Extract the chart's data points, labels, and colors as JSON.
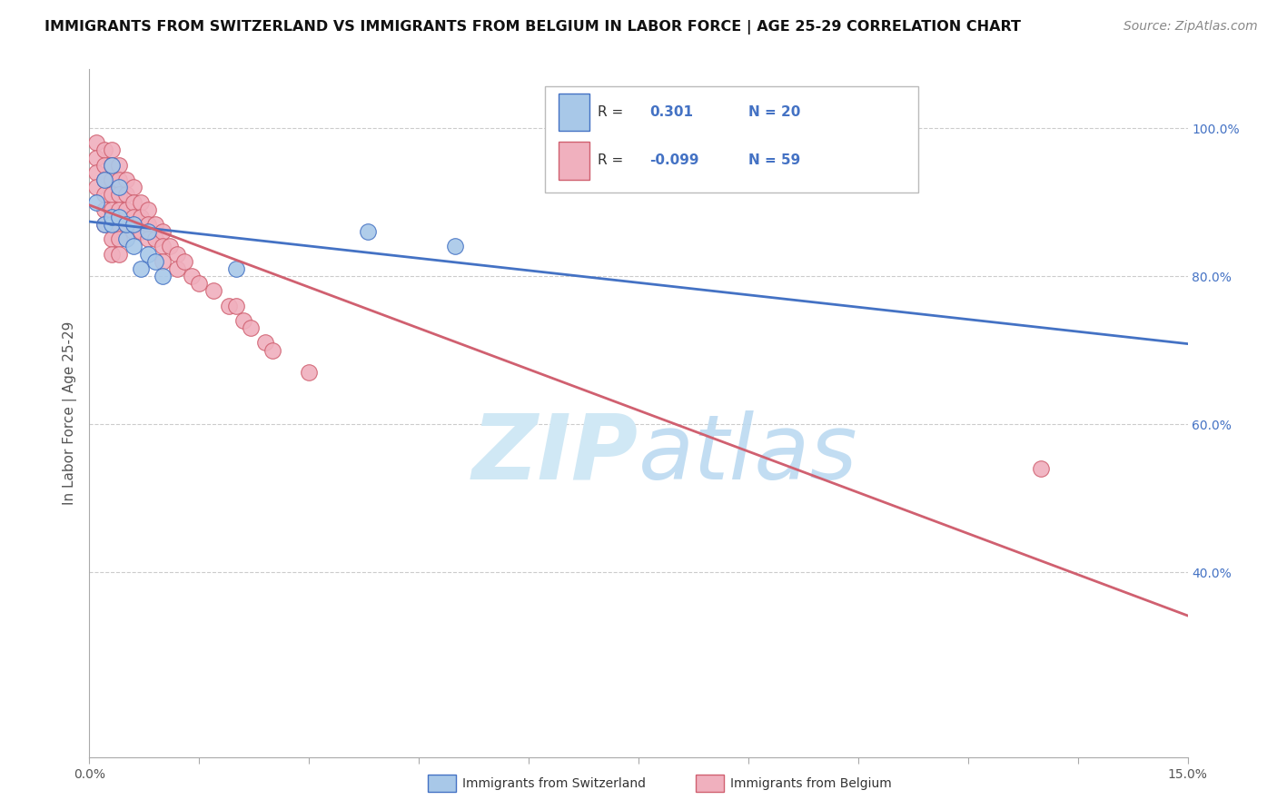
{
  "title": "IMMIGRANTS FROM SWITZERLAND VS IMMIGRANTS FROM BELGIUM IN LABOR FORCE | AGE 25-29 CORRELATION CHART",
  "source": "Source: ZipAtlas.com",
  "ylabel": "In Labor Force | Age 25-29",
  "xlim": [
    0.0,
    0.15
  ],
  "ylim": [
    0.15,
    1.08
  ],
  "ytick_positions": [
    0.4,
    0.6,
    0.8,
    1.0
  ],
  "ytick_labels": [
    "40.0%",
    "60.0%",
    "80.0%",
    "100.0%"
  ],
  "R_swiss": 0.301,
  "N_swiss": 20,
  "R_belgium": -0.099,
  "N_belgium": 59,
  "color_swiss": "#a8c8e8",
  "color_belgium": "#f0b0be",
  "color_swiss_line": "#4472c4",
  "color_belgium_line": "#d06070",
  "swiss_x": [
    0.001,
    0.002,
    0.002,
    0.003,
    0.003,
    0.003,
    0.004,
    0.004,
    0.005,
    0.005,
    0.006,
    0.006,
    0.007,
    0.008,
    0.008,
    0.009,
    0.01,
    0.02,
    0.038,
    0.05
  ],
  "swiss_y": [
    0.9,
    0.87,
    0.93,
    0.87,
    0.95,
    0.88,
    0.88,
    0.92,
    0.85,
    0.87,
    0.84,
    0.87,
    0.81,
    0.83,
    0.86,
    0.82,
    0.8,
    0.81,
    0.86,
    0.84
  ],
  "belgium_x": [
    0.001,
    0.001,
    0.001,
    0.001,
    0.002,
    0.002,
    0.002,
    0.002,
    0.002,
    0.002,
    0.003,
    0.003,
    0.003,
    0.003,
    0.003,
    0.003,
    0.003,
    0.003,
    0.004,
    0.004,
    0.004,
    0.004,
    0.004,
    0.004,
    0.004,
    0.005,
    0.005,
    0.005,
    0.005,
    0.006,
    0.006,
    0.006,
    0.006,
    0.007,
    0.007,
    0.007,
    0.008,
    0.008,
    0.008,
    0.009,
    0.009,
    0.01,
    0.01,
    0.01,
    0.011,
    0.012,
    0.012,
    0.013,
    0.014,
    0.015,
    0.017,
    0.019,
    0.02,
    0.021,
    0.022,
    0.024,
    0.025,
    0.03,
    0.13
  ],
  "belgium_y": [
    0.98,
    0.96,
    0.94,
    0.92,
    0.97,
    0.95,
    0.93,
    0.91,
    0.89,
    0.87,
    0.97,
    0.95,
    0.93,
    0.91,
    0.89,
    0.87,
    0.85,
    0.83,
    0.95,
    0.93,
    0.91,
    0.89,
    0.87,
    0.85,
    0.83,
    0.93,
    0.91,
    0.89,
    0.87,
    0.92,
    0.9,
    0.88,
    0.86,
    0.9,
    0.88,
    0.86,
    0.89,
    0.87,
    0.85,
    0.87,
    0.85,
    0.86,
    0.84,
    0.82,
    0.84,
    0.83,
    0.81,
    0.82,
    0.8,
    0.79,
    0.78,
    0.76,
    0.76,
    0.74,
    0.73,
    0.71,
    0.7,
    0.67,
    0.54
  ],
  "background_color": "#ffffff",
  "grid_color": "#cccccc",
  "title_fontsize": 11.5,
  "axis_fontsize": 11,
  "tick_fontsize": 10,
  "source_fontsize": 10
}
